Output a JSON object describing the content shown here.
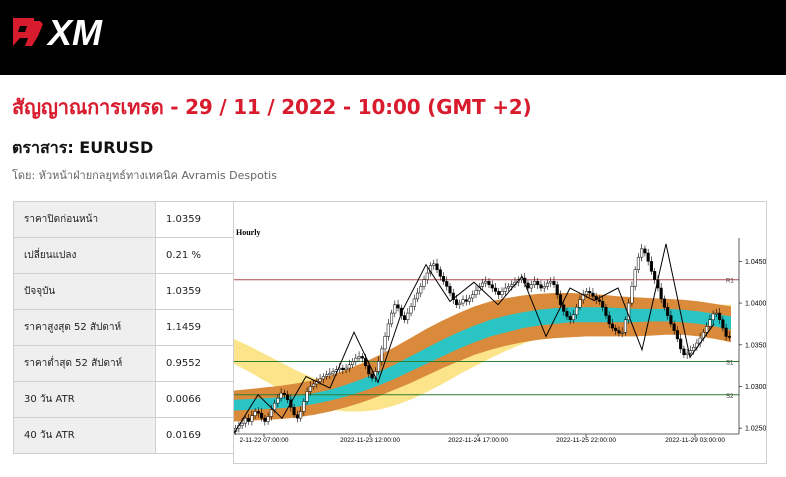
{
  "header": {
    "brand": "XM",
    "colors": {
      "background": "#000000",
      "logo_red": "#d81c2e",
      "logo_white": "#ffffff"
    }
  },
  "page": {
    "title": "สัญญาณการเทรด - 29 / 11 / 2022 - 10:00 (GMT +2)",
    "instrument": "ตราสาร: EURUSD",
    "author": "โดย: หัวหน้าฝ่ายกลยุทธ์ทางเทคนิค Avramis Despotis",
    "title_color": "#d81c2e"
  },
  "stats": [
    {
      "label": "ราคาปิดก่อนหน้า",
      "value": "1.0359"
    },
    {
      "label": "เปลี่ยนแปลง",
      "value": "0.21 %"
    },
    {
      "label": "ปัจจุบัน",
      "value": "1.0359"
    },
    {
      "label": "ราคาสูงสุด 52 สัปดาห์",
      "value": "1.1459"
    },
    {
      "label": "ราคาต่ำสุด 52 สัปดาห์",
      "value": "0.9552"
    },
    {
      "label": "30 วัน ATR",
      "value": "0.0066"
    },
    {
      "label": "40 วัน ATR",
      "value": "0.0169"
    }
  ],
  "chart_data": {
    "type": "candlestick",
    "timeframe_label": "Hourly",
    "x_ticks": [
      "2-11-22 07:00:00",
      "2022-11-23 12:00:00",
      "2022-11-24 17:00:00",
      "2022-11-25 22:00:00",
      "2022-11-29 03:00:00"
    ],
    "y_ticks": [
      "1.0450",
      "1.0400",
      "1.0350",
      "1.0300",
      "1.0250"
    ],
    "y_tick_values": [
      1.045,
      1.04,
      1.035,
      1.03,
      1.025
    ],
    "ylim": [
      1.0243,
      1.0478
    ],
    "levels": [
      {
        "name": "R1",
        "value": 1.0428,
        "color": "#b84a4a"
      },
      {
        "name": "S1",
        "value": 1.033,
        "color": "#2e7d32"
      },
      {
        "name": "S2",
        "value": 1.029,
        "color": "#2e7d32"
      }
    ],
    "close": [
      1.025,
      1.0253,
      1.0256,
      1.0262,
      1.0258,
      1.0265,
      1.027,
      1.0268,
      1.0262,
      1.0258,
      1.0264,
      1.0272,
      1.028,
      1.0286,
      1.0292,
      1.029,
      1.0284,
      1.0275,
      1.0266,
      1.0262,
      1.027,
      1.0282,
      1.0294,
      1.03,
      1.0303,
      1.0306,
      1.0309,
      1.0312,
      1.0314,
      1.0316,
      1.0318,
      1.032,
      1.0322,
      1.032,
      1.0322,
      1.0326,
      1.033,
      1.0334,
      1.0336,
      1.0334,
      1.0325,
      1.0315,
      1.031,
      1.0318,
      1.033,
      1.0345,
      1.036,
      1.0375,
      1.0388,
      1.0398,
      1.0394,
      1.0385,
      1.038,
      1.0388,
      1.0396,
      1.0405,
      1.0412,
      1.042,
      1.0428,
      1.0436,
      1.0445,
      1.0447,
      1.044,
      1.0432,
      1.0426,
      1.042,
      1.0412,
      1.0404,
      1.0398,
      1.04,
      1.0404,
      1.0402,
      1.0406,
      1.041,
      1.0415,
      1.042,
      1.0424,
      1.0426,
      1.0422,
      1.0418,
      1.0414,
      1.041,
      1.0414,
      1.0418,
      1.042,
      1.0422,
      1.0425,
      1.0428,
      1.043,
      1.0424,
      1.0418,
      1.0422,
      1.0426,
      1.0422,
      1.0418,
      1.042,
      1.0424,
      1.0426,
      1.0422,
      1.041,
      1.0398,
      1.039,
      1.0384,
      1.038,
      1.0386,
      1.0395,
      1.0404,
      1.041,
      1.0414,
      1.0412,
      1.0408,
      1.0404,
      1.0402,
      1.0395,
      1.0385,
      1.0375,
      1.037,
      1.0367,
      1.0364,
      1.0365,
      1.038,
      1.04,
      1.042,
      1.044,
      1.0455,
      1.0465,
      1.046,
      1.045,
      1.0438,
      1.0428,
      1.0418,
      1.0405,
      1.0395,
      1.0385,
      1.0375,
      1.0367,
      1.0357,
      1.0345,
      1.0338,
      1.034,
      1.0343,
      1.0347,
      1.0352,
      1.0358,
      1.0365,
      1.0372,
      1.038,
      1.0387,
      1.0388,
      1.038,
      1.037,
      1.036,
      1.0359
    ],
    "bands": {
      "outer_orange_top": [
        1.0295,
        1.0297,
        1.0299,
        1.0301,
        1.0304,
        1.0308,
        1.0313,
        1.032,
        1.0328,
        1.0337,
        1.0347,
        1.0358,
        1.0369,
        1.0379,
        1.0388,
        1.0396,
        1.0402,
        1.0406,
        1.0409,
        1.0411,
        1.0412,
        1.0412,
        1.0411,
        1.041,
        1.0408,
        1.0407,
        1.0406,
        1.0405,
        1.0404,
        1.0402,
        1.0399,
        1.0396
      ],
      "inner_teal_top": [
        1.0284,
        1.0285,
        1.0286,
        1.0287,
        1.0289,
        1.0292,
        1.0296,
        1.0302,
        1.0309,
        1.0317,
        1.0326,
        1.0336,
        1.0346,
        1.0356,
        1.0365,
        1.0373,
        1.038,
        1.0385,
        1.0389,
        1.0392,
        1.0394,
        1.0395,
        1.0395,
        1.0395,
        1.0394,
        1.0393,
        1.0393,
        1.0393,
        1.0392,
        1.039,
        1.0387,
        1.0384
      ],
      "inner_teal_bottom": [
        1.0271,
        1.0272,
        1.0273,
        1.0274,
        1.0276,
        1.0279,
        1.0283,
        1.0288,
        1.0294,
        1.0301,
        1.0309,
        1.0318,
        1.0327,
        1.0336,
        1.0345,
        1.0353,
        1.036,
        1.0365,
        1.037,
        1.0373,
        1.0375,
        1.0377,
        1.0377,
        1.0377,
        1.0377,
        1.0377,
        1.0378,
        1.0378,
        1.0377,
        1.0375,
        1.0372,
        1.0368
      ],
      "outer_orange_bottom": [
        1.0258,
        1.0259,
        1.026,
        1.0261,
        1.0263,
        1.0266,
        1.027,
        1.0275,
        1.0281,
        1.0288,
        1.0296,
        1.0304,
        1.0313,
        1.0322,
        1.033,
        1.0338,
        1.0344,
        1.0349,
        1.0353,
        1.0356,
        1.0358,
        1.0359,
        1.036,
        1.036,
        1.036,
        1.036,
        1.0361,
        1.0362,
        1.0362,
        1.036,
        1.0357,
        1.0353
      ],
      "yellow_top": [
        1.0357,
        1.0348,
        1.0338,
        1.0328,
        1.0318,
        1.031,
        1.0304,
        1.03,
        1.0298,
        1.0298,
        1.0302,
        1.0308,
        1.0317,
        1.0328,
        1.034,
        1.0352,
        1.0363,
        1.0373,
        1.0381,
        1.0388,
        1.0393,
        1.0397,
        1.04,
        1.0402,
        1.0403,
        1.0403,
        1.0402,
        1.0401,
        1.04,
        1.0399,
        1.0398,
        1.0398
      ],
      "yellow_bottom": [
        1.0327,
        1.0317,
        1.0306,
        1.0295,
        1.0285,
        1.0277,
        1.0272,
        1.027,
        1.027,
        1.0272,
        1.0277,
        1.0284,
        1.0293,
        1.0303,
        1.0314,
        1.0324,
        1.0334,
        1.0343,
        1.0351,
        1.0358,
        1.0364,
        1.0369,
        1.0373,
        1.0376,
        1.0378,
        1.0379,
        1.038,
        1.0381,
        1.0381,
        1.0382,
        1.0383,
        1.0384
      ]
    },
    "zigzag": [
      1.0244,
      1.029,
      1.0262,
      1.0312,
      1.0298,
      1.0365,
      1.0305,
      1.039,
      1.0446,
      1.0402,
      1.0425,
      1.0398,
      1.0432,
      1.036,
      1.0418,
      1.0403,
      1.0418,
      1.0344,
      1.0471,
      1.0335,
      1.0375
    ]
  }
}
